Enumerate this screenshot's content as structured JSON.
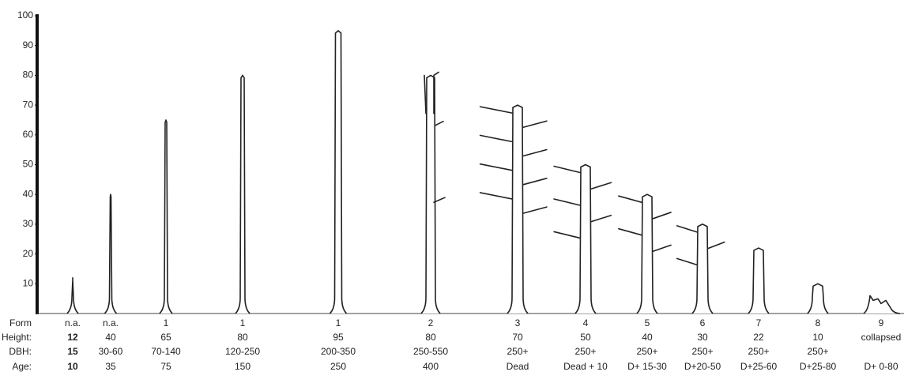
{
  "axis": {
    "ticks": [
      10,
      20,
      30,
      40,
      50,
      60,
      70,
      80,
      90,
      100
    ]
  },
  "row_labels": [
    "Form",
    "Height:",
    "DBH:",
    "Age:"
  ],
  "columns": [
    {
      "form": "n.a.",
      "height": "12",
      "dbh": "15",
      "age": "10"
    },
    {
      "form": "n.a.",
      "height": "40",
      "dbh": "30-60",
      "age": "35"
    },
    {
      "form": "1",
      "height": "65",
      "dbh": "70-140",
      "age": "75"
    },
    {
      "form": "1",
      "height": "80",
      "dbh": "120-250",
      "age": "150"
    },
    {
      "form": "1",
      "height": "95",
      "dbh": "200-350",
      "age": "250"
    },
    {
      "form": "2",
      "height": "80",
      "dbh": "250-550",
      "age": "400"
    },
    {
      "form": "3",
      "height": "70",
      "dbh": "250+",
      "age": "Dead"
    },
    {
      "form": "4",
      "height": "50",
      "dbh": "250+",
      "age": "Dead + 10"
    },
    {
      "form": "5",
      "height": "40",
      "dbh": "250+",
      "age": "D+ 15-30"
    },
    {
      "form": "6",
      "height": "30",
      "dbh": "250+",
      "age": "D+20-50"
    },
    {
      "form": "7",
      "height": "22",
      "dbh": "250+",
      "age": "D+25-60"
    },
    {
      "form": "8",
      "height": "10",
      "dbh": "250+",
      "age": "D+25-80"
    },
    {
      "form": "9",
      "height": "collapsed",
      "dbh": "",
      "age": "D+ 0-80"
    }
  ]
}
